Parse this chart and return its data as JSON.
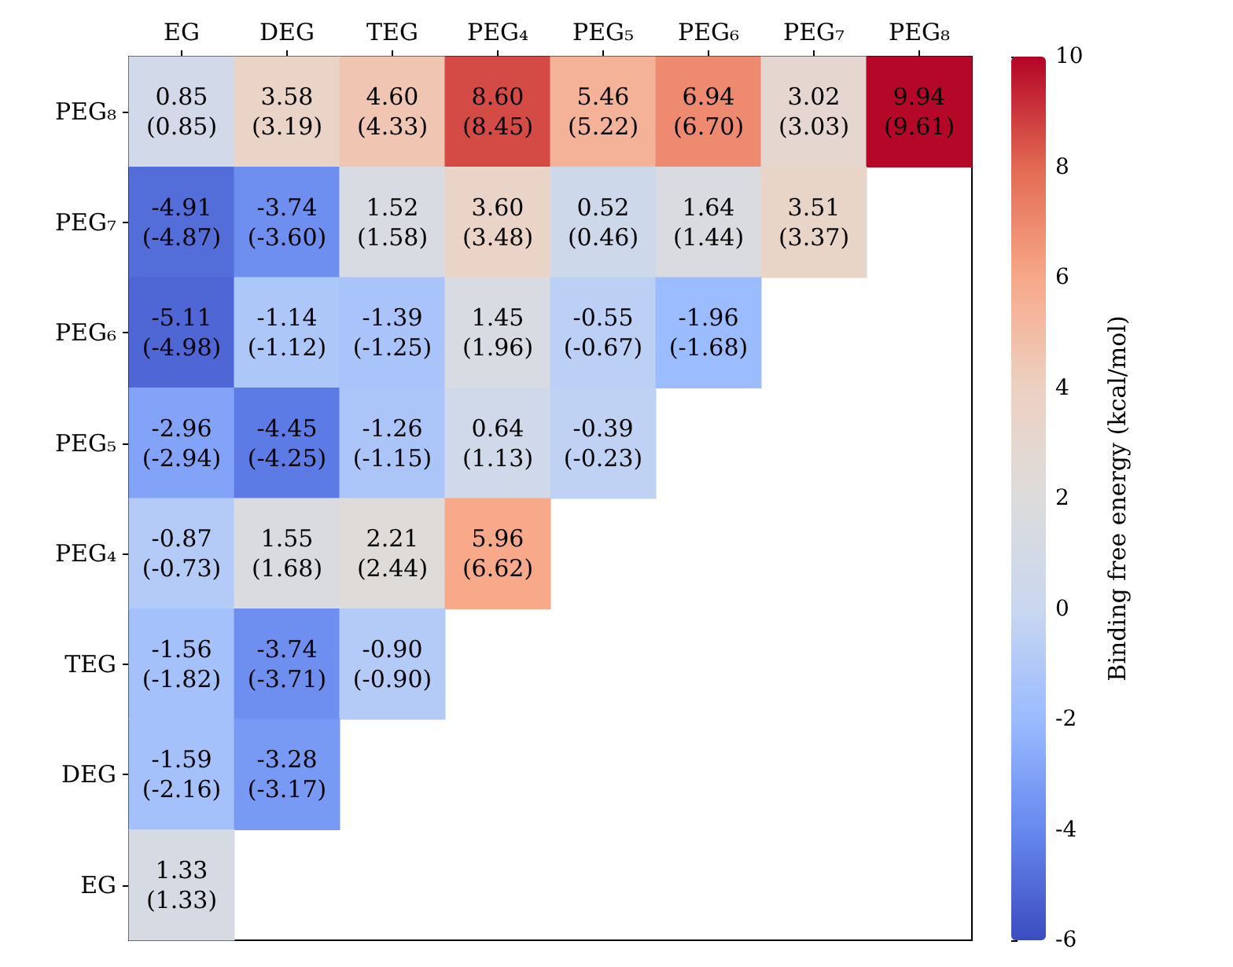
{
  "chart_data": {
    "type": "heatmap",
    "clabel": "Binding free energy (kcal/mol)",
    "categories": [
      "EG",
      "DEG",
      "TEG",
      "PEG₄",
      "PEG₅",
      "PEG₆",
      "PEG₇",
      "PEG₈"
    ],
    "y_categories": [
      "PEG₈",
      "PEG₇",
      "PEG₆",
      "PEG₅",
      "PEG₄",
      "TEG",
      "DEG",
      "EG"
    ],
    "cells": [
      [
        0.85,
        3.58,
        4.6,
        8.6,
        5.46,
        6.94,
        3.02,
        9.94
      ],
      [
        -4.91,
        -3.74,
        1.52,
        3.6,
        0.52,
        1.64,
        3.51,
        null
      ],
      [
        -5.11,
        -1.14,
        -1.39,
        1.45,
        -0.55,
        -1.96,
        null,
        null
      ],
      [
        -2.96,
        -4.45,
        -1.26,
        0.64,
        -0.39,
        null,
        null,
        null
      ],
      [
        -0.87,
        1.55,
        2.21,
        5.96,
        null,
        null,
        null,
        null
      ],
      [
        -1.56,
        -3.74,
        -0.9,
        null,
        null,
        null,
        null,
        null
      ],
      [
        -1.59,
        -3.28,
        null,
        null,
        null,
        null,
        null,
        null
      ],
      [
        1.33,
        null,
        null,
        null,
        null,
        null,
        null,
        null
      ]
    ],
    "cell_labels": [
      [
        "0.85\n(0.85)",
        "3.58\n(3.19)",
        "4.60\n(4.33)",
        "8.60\n(8.45)",
        "5.46\n(5.22)",
        "6.94\n(6.70)",
        "3.02\n(3.03)",
        "9.94\n(9.61)"
      ],
      [
        "-4.91\n(-4.87)",
        "-3.74\n(-3.60)",
        "1.52\n(1.58)",
        "3.60\n(3.48)",
        "0.52\n(0.46)",
        "1.64\n(1.44)",
        "3.51\n(3.37)",
        null
      ],
      [
        "-5.11\n(-4.98)",
        "-1.14\n(-1.12)",
        "-1.39\n(-1.25)",
        "1.45\n(1.96)",
        "-0.55\n(-0.67)",
        "-1.96\n(-1.68)",
        null,
        null
      ],
      [
        "-2.96\n(-2.94)",
        "-4.45\n(-4.25)",
        "-1.26\n(-1.15)",
        "0.64\n(1.13)",
        "-0.39\n(-0.23)",
        null,
        null,
        null
      ],
      [
        "-0.87\n(-0.73)",
        "1.55\n(1.68)",
        "2.21\n(2.44)",
        "5.96\n(6.62)",
        null,
        null,
        null,
        null
      ],
      [
        "-1.56\n(-1.82)",
        "-3.74\n(-3.71)",
        "-0.90\n(-0.90)",
        null,
        null,
        null,
        null,
        null
      ],
      [
        "-1.59\n(-2.16)",
        "-3.28\n(-3.17)",
        null,
        null,
        null,
        null,
        null,
        null
      ],
      [
        "1.33\n(1.33)",
        null,
        null,
        null,
        null,
        null,
        null,
        null
      ]
    ],
    "clim": [
      -6,
      10
    ],
    "cticks": [
      -6,
      -4,
      -2,
      0,
      2,
      4,
      6,
      8,
      10
    ]
  }
}
